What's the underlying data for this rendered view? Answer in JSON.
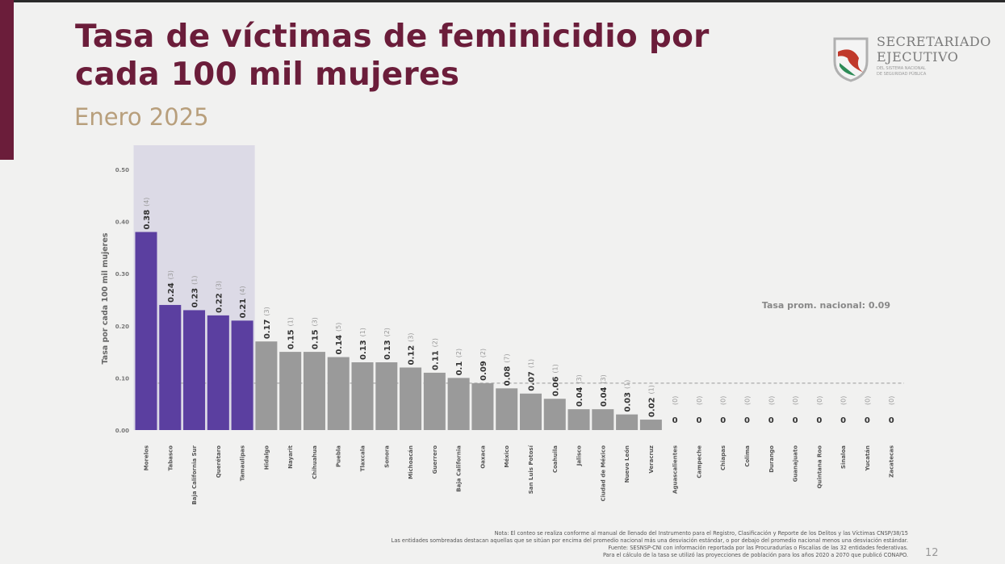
{
  "header": {
    "title_line1": "Tasa de víctimas de feminicidio por",
    "title_line2": "cada 100 mil mujeres",
    "subtitle": "Enero 2025",
    "logo_line1": "SECRETARIADO",
    "logo_line2": "EJECUTIVO",
    "logo_small1": "DEL SISTEMA NACIONAL",
    "logo_small2": "DE SEGURIDAD PÚBLICA"
  },
  "chart_data": {
    "type": "bar",
    "title": "",
    "xlabel": "",
    "ylabel": "Tasa por cada 100 mil mujeres",
    "ylim": [
      0,
      0.5
    ],
    "yticks": [
      "0.00",
      "0.10",
      "0.20",
      "0.30",
      "0.40",
      "0.50"
    ],
    "grid": false,
    "categories": [
      "Morelos",
      "Tabasco",
      "Baja California Sur",
      "Querétaro",
      "Tamaulipas",
      "Hidalgo",
      "Nayarit",
      "Chihuahua",
      "Puebla",
      "Tlaxcala",
      "Sonora",
      "Michoacán",
      "Guerrero",
      "Baja California",
      "Oaxaca",
      "México",
      "San Luis Potosí",
      "Coahuila",
      "Jalisco",
      "Ciudad de México",
      "Nuevo León",
      "Veracruz",
      "Aguascalientes",
      "Campeche",
      "Chiapas",
      "Colima",
      "Durango",
      "Guanajuato",
      "Quintana Roo",
      "Sinaloa",
      "Yucatán",
      "Zacatecas"
    ],
    "values": [
      0.38,
      0.24,
      0.23,
      0.22,
      0.21,
      0.17,
      0.15,
      0.15,
      0.14,
      0.13,
      0.13,
      0.12,
      0.11,
      0.1,
      0.09,
      0.08,
      0.07,
      0.06,
      0.04,
      0.04,
      0.03,
      0.02,
      0,
      0,
      0,
      0,
      0,
      0,
      0,
      0,
      0,
      0
    ],
    "value_labels": [
      "0.38",
      "0.24",
      "0.23",
      "0.22",
      "0.21",
      "0.17",
      "0.15",
      "0.15",
      "0.14",
      "0.13",
      "0.13",
      "0.12",
      "0.11",
      "0.1",
      "0.09",
      "0.08",
      "0.07",
      "0.06",
      "0.04",
      "0.04",
      "0.03",
      "0.02",
      "0",
      "0",
      "0",
      "0",
      "0",
      "0",
      "0",
      "0",
      "0",
      "0"
    ],
    "counts": [
      "(4)",
      "(3)",
      "(1)",
      "(3)",
      "(4)",
      "(3)",
      "(1)",
      "(3)",
      "(5)",
      "(1)",
      "(2)",
      "(3)",
      "(2)",
      "(2)",
      "(2)",
      "(7)",
      "(1)",
      "(1)",
      "(3)",
      "(3)",
      "(1)",
      "(1)",
      "(0)",
      "(0)",
      "(0)",
      "(0)",
      "(0)",
      "(0)",
      "(0)",
      "(0)",
      "(0)",
      "(0)"
    ],
    "highlighted_count": 5,
    "national_average": 0.09,
    "average_label": "Tasa prom. nacional: 0.09",
    "colors": {
      "highlight": "#5b3fa0",
      "normal": "#9a9a9a",
      "shade": "#dcdae6",
      "average_line": "#aaaaaa"
    }
  },
  "footer": {
    "notes": [
      "Nota: El conteo se realiza conforme al manual de llenado del Instrumento para el Registro, Clasificación y Reporte de los Delitos y las Víctimas CNSP/38/15",
      "Las entidades sombreadas destacan aquellas que se sitúan por encima del promedio nacional más una desviación estándar, o por debajo del promedio nacional menos una desviación estándar.",
      "Fuente: SESNSP-CNI con información reportada por las Procuradurías o Fiscalías de las 32 entidades federativas.",
      "Para el cálculo de la tasa se utilizó las proyecciones de población para los años 2020 a 2070 que publicó CONAPO."
    ],
    "page_number": "12"
  }
}
